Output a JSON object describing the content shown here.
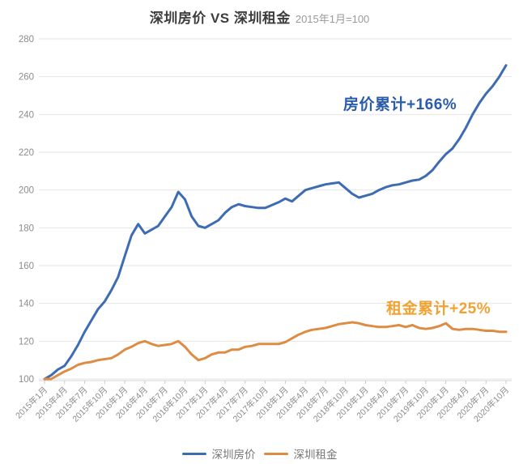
{
  "title": {
    "main": "深圳房价 VS 深圳租金",
    "suffix": "2015年1月=100"
  },
  "annotations": {
    "price": {
      "text": "房价累计+166%",
      "color": "#2b5cab"
    },
    "rent": {
      "text": "租金累计+25%",
      "color": "#f0a232"
    }
  },
  "legend": [
    {
      "label": "深圳房价",
      "color": "#3e6cb3"
    },
    {
      "label": "深圳租金",
      "color": "#dd8c44"
    }
  ],
  "colors": {
    "grid": "#e6e6e6",
    "axis": "#d5d5d5",
    "tick": "#c9c9c9",
    "axis_label": "#8c8c8c"
  },
  "chart_data": {
    "type": "line",
    "title": "深圳房价 VS 深圳租金 2015年1月=100",
    "xlabel": "",
    "ylabel": "",
    "ylim": [
      100,
      280
    ],
    "y_ticks": [
      100,
      120,
      140,
      160,
      180,
      200,
      220,
      240,
      260,
      280
    ],
    "grid": true,
    "legend_position": "bottom",
    "x_start": "2015年1月",
    "x_interval_months": 1,
    "x_tick_every": 3,
    "x_tick_labels": [
      "2015年1月",
      "2015年4月",
      "2015年7月",
      "2015年10月",
      "2016年1月",
      "2016年4月",
      "2016年7月",
      "2016年10月",
      "2017年1月",
      "2017年4月",
      "2017年7月",
      "2017年10月",
      "2018年1月",
      "2018年4月",
      "2018年7月",
      "2018年10月",
      "2019年1月",
      "2019年4月",
      "2019年7月",
      "2019年10月",
      "2020年1月",
      "2020年4月",
      "2020年7月",
      "2020年10月"
    ],
    "series": [
      {
        "name": "深圳房价",
        "color": "#3e6cb3",
        "values": [
          100,
          102,
          105,
          107,
          112,
          118,
          125,
          131,
          137,
          141,
          147,
          154,
          165,
          176,
          182,
          177,
          179,
          181,
          186,
          191,
          199,
          195,
          186,
          181,
          180,
          182,
          184,
          188,
          191,
          192.5,
          191.5,
          191,
          190.5,
          190.5,
          192,
          193.5,
          195.5,
          194,
          197,
          200,
          201,
          202,
          203,
          203.5,
          204,
          201,
          198,
          196,
          197,
          198,
          200,
          201.5,
          202.5,
          203,
          204,
          205,
          205.5,
          207.5,
          210.5,
          215,
          219,
          222,
          227,
          233,
          240,
          246,
          251,
          255,
          260,
          266
        ]
      },
      {
        "name": "深圳租金",
        "color": "#dd8c44",
        "values": [
          100,
          100,
          102,
          104,
          105.5,
          107.5,
          108.5,
          109,
          110,
          110.5,
          111,
          113,
          115.5,
          117,
          119,
          120,
          118.5,
          117.5,
          118,
          118.5,
          120,
          117,
          113,
          110,
          111,
          113,
          114,
          114,
          115.5,
          115.5,
          117,
          117.5,
          118.5,
          118.5,
          118.5,
          118.5,
          119.5,
          121.5,
          123.5,
          125,
          126,
          126.5,
          127,
          128,
          129,
          129.5,
          130,
          129.5,
          128.5,
          128,
          127.5,
          127.5,
          128,
          128.5,
          127.5,
          128.5,
          127,
          126.5,
          127,
          128,
          129.5,
          126.5,
          126,
          126.5,
          126.5,
          126,
          125.5,
          125.5,
          125,
          125
        ]
      }
    ]
  }
}
